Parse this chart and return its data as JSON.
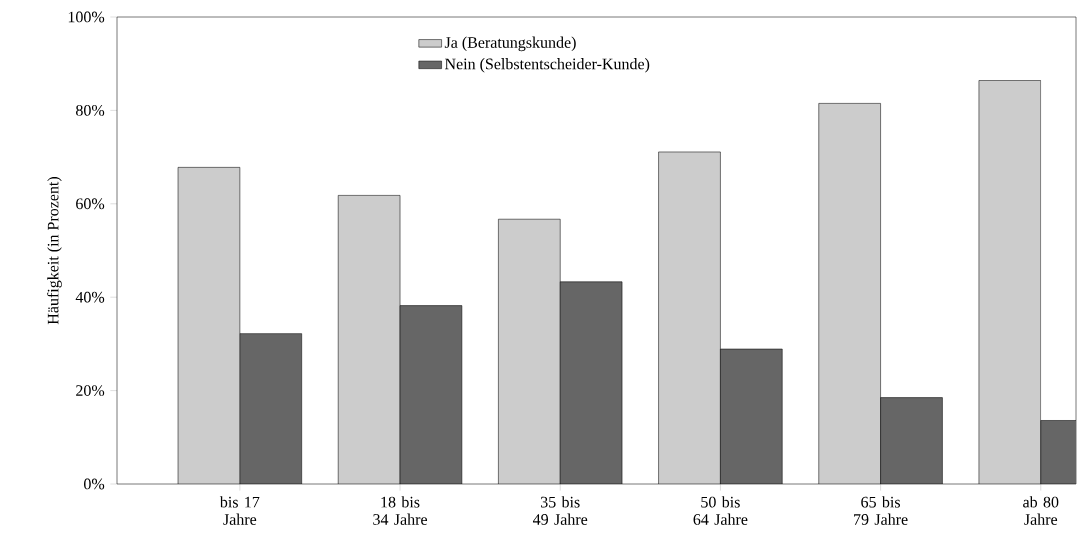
{
  "chart_data": {
    "type": "bar",
    "ylabel": "Häufigkeit (in Prozent)",
    "categories": [
      "bis 17 Jahre",
      "18 bis 34 Jahre",
      "35 bis 49 Jahre",
      "50 bis 64 Jahre",
      "65 bis 79 Jahre",
      "ab 80 Jahre"
    ],
    "series": [
      {
        "name": "Ja (Beratungskunde)",
        "color": "#cccccc",
        "values": [
          67.8,
          61.8,
          56.7,
          71.1,
          81.5,
          86.4
        ]
      },
      {
        "name": "Nein (Selbstentscheider-Kunde)",
        "color": "#666666",
        "values": [
          32.2,
          38.2,
          43.3,
          28.9,
          18.5,
          13.6
        ]
      }
    ],
    "ylim": [
      0,
      100
    ],
    "yticks": [
      {
        "value": 0,
        "label": "0%"
      },
      {
        "value": 20,
        "label": "20%"
      },
      {
        "value": 40,
        "label": "40%"
      },
      {
        "value": 60,
        "label": "60%"
      },
      {
        "value": 80,
        "label": "80%"
      },
      {
        "value": 100,
        "label": "100%"
      }
    ],
    "grid": false,
    "legend": "top"
  }
}
